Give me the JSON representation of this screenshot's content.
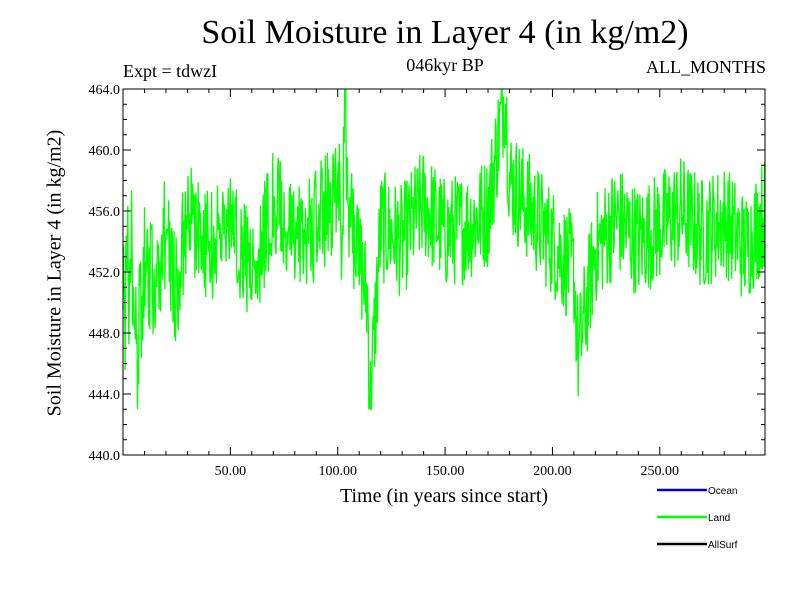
{
  "chart_data": {
    "type": "line",
    "title": "Soil Moisture in Layer 4 (in kg/m2)",
    "subtitle_left": "Expt = tdwzI",
    "subtitle_center": "046kyr BP",
    "subtitle_right": "ALL_MONTHS",
    "xlabel": "Time (in years since start)",
    "ylabel": "Soil Moisture in Layer 4 (in kg/m2)",
    "xlim": [
      0,
      299
    ],
    "ylim": [
      440.0,
      464.0
    ],
    "x_ticks": [
      50,
      100,
      150,
      200,
      250
    ],
    "x_tick_labels": [
      "50.00",
      "100.00",
      "150.00",
      "200.00",
      "250.00"
    ],
    "y_ticks": [
      440,
      444,
      448,
      452,
      456,
      460,
      464
    ],
    "y_tick_labels": [
      "440.0",
      "444.0",
      "448.0",
      "452.0",
      "456.0",
      "460.0",
      "464.0"
    ],
    "grid": false,
    "legend_position": "bottom-right",
    "series": [
      {
        "name": "Ocean",
        "color": "#0000cc",
        "values": []
      },
      {
        "name": "Land",
        "color": "#00ff00",
        "x": [
          0,
          1,
          2,
          3,
          4,
          5,
          6,
          7,
          8,
          9,
          10,
          15,
          20,
          25,
          30,
          40,
          50,
          60,
          70,
          80,
          90,
          100,
          101,
          102,
          103,
          105,
          110,
          114,
          115,
          120,
          130,
          140,
          150,
          160,
          170,
          178,
          180,
          190,
          200,
          210,
          212,
          220,
          230,
          240,
          250,
          260,
          270,
          280,
          290,
          299
        ],
        "values": [
          452.0,
          449.0,
          455.5,
          448.5,
          454.0,
          446.5,
          450.0,
          444.0,
          452.5,
          447.5,
          453.0,
          451.0,
          455.0,
          450.5,
          456.0,
          453.5,
          455.5,
          452.0,
          456.5,
          454.0,
          455.0,
          457.5,
          460.5,
          452.0,
          463.5,
          456.0,
          453.0,
          450.0,
          443.0,
          455.0,
          454.0,
          456.5,
          454.5,
          455.0,
          456.0,
          464.0,
          458.0,
          456.0,
          454.0,
          452.0,
          446.5,
          453.5,
          455.5,
          454.0,
          455.0,
          456.0,
          454.5,
          455.5,
          453.5,
          456.0
        ]
      },
      {
        "name": "AllSurf",
        "color": "#000000",
        "values": []
      }
    ]
  }
}
